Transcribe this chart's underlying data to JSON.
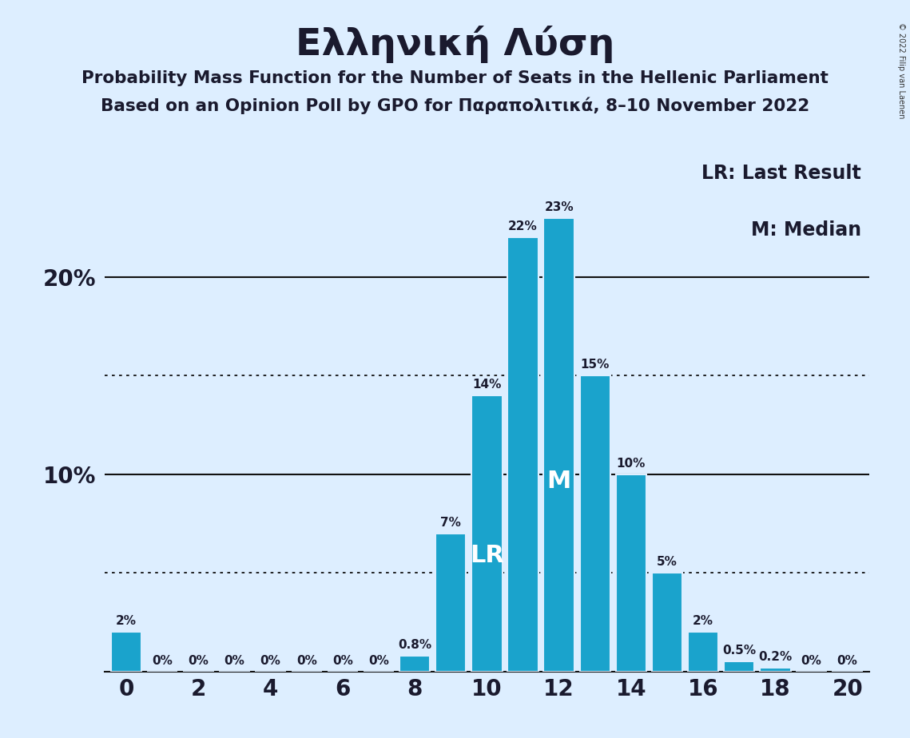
{
  "title": "Ελληνική Λύση",
  "subtitle1": "Probability Mass Function for the Number of Seats in the Hellenic Parliament",
  "subtitle2": "Based on an Opinion Poll by GPO for Παραπολιτικά, 8–10 November 2022",
  "copyright": "© 2022 Filip van Laenen",
  "legend_lr": "LR: Last Result",
  "legend_m": "M: Median",
  "seats": [
    0,
    1,
    2,
    3,
    4,
    5,
    6,
    7,
    8,
    9,
    10,
    11,
    12,
    13,
    14,
    15,
    16,
    17,
    18,
    19,
    20
  ],
  "probabilities": [
    2.0,
    0.0,
    0.0,
    0.0,
    0.0,
    0.0,
    0.0,
    0.0,
    0.8,
    7.0,
    14.0,
    22.0,
    23.0,
    15.0,
    10.0,
    5.0,
    2.0,
    0.5,
    0.2,
    0.0,
    0.0
  ],
  "labels": [
    "2%",
    "0%",
    "0%",
    "0%",
    "0%",
    "0%",
    "0%",
    "0%",
    "0.8%",
    "7%",
    "14%",
    "22%",
    "23%",
    "15%",
    "10%",
    "5%",
    "2%",
    "0.5%",
    "0.2%",
    "0%",
    "0%"
  ],
  "bar_color": "#1aa3cc",
  "background_color": "#ddeeff",
  "lr_seat": 10,
  "median_seat": 12,
  "lr_label": "LR",
  "median_label": "M",
  "label_color_inside": "#ffffff",
  "label_color_outside": "#1a1a2e",
  "solid_hlines": [
    10.0,
    20.0
  ],
  "dotted_hlines": [
    5.0,
    15.0
  ],
  "ylim": [
    0,
    26
  ],
  "xlim": [
    -0.6,
    20.6
  ],
  "xticks": [
    0,
    2,
    4,
    6,
    8,
    10,
    12,
    14,
    16,
    18,
    20
  ],
  "ytick_labels": [
    "10%",
    "20%"
  ],
  "title_fontsize": 34,
  "subtitle_fontsize": 15.5,
  "bar_width": 0.85
}
